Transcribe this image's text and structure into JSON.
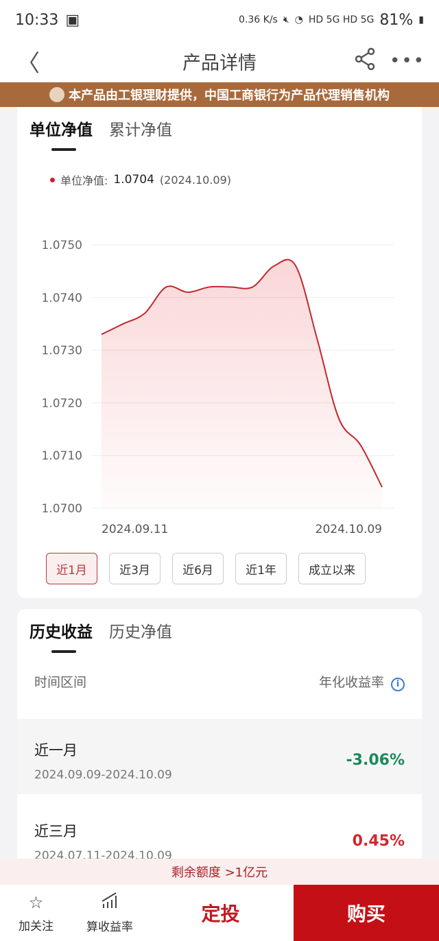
{
  "status": {
    "time": "10:33",
    "speed": "0.36 K/s",
    "net": "HD 5G HD 5G",
    "battery": "81%"
  },
  "nav": {
    "title": "产品详情"
  },
  "banner": {
    "text": "本产品由工银理财提供，中国工商银行为产品代理销售机构"
  },
  "chart_card": {
    "tabs": [
      "单位净值",
      "累计净值"
    ],
    "legend_label": "单位净值:",
    "legend_value": "1.0704",
    "legend_date": "(2024.10.09)",
    "periods": [
      "近1月",
      "近3月",
      "近6月",
      "近1年",
      "成立以来"
    ],
    "active_period": 0
  },
  "chart_data": {
    "type": "area",
    "series": [
      {
        "name": "单位净值",
        "x": [
          "2024.09.11",
          "2024.09.12",
          "2024.09.13",
          "2024.09.18",
          "2024.09.19",
          "2024.09.20",
          "2024.09.23",
          "2024.09.24",
          "2024.09.25",
          "2024.09.26",
          "2024.09.27",
          "2024.09.30",
          "2024.10.08",
          "2024.10.09"
        ],
        "values": [
          1.0733,
          1.0735,
          1.0737,
          1.0742,
          1.0741,
          1.0742,
          1.0742,
          1.0742,
          1.0746,
          1.0746,
          1.0732,
          1.0717,
          1.0712,
          1.0704
        ]
      }
    ],
    "y_ticks": [
      "1.0750",
      "1.0740",
      "1.0730",
      "1.0720",
      "1.0710",
      "1.0700"
    ],
    "x_ticks": [
      "2024.09.11",
      "2024.10.09"
    ],
    "ylim": [
      1.07,
      1.075
    ],
    "grid": true,
    "color": "#c0282d"
  },
  "history": {
    "tabs": [
      "历史收益",
      "历史净值"
    ],
    "col_period": "时间区间",
    "col_rate": "年化收益率",
    "rows": [
      {
        "name": "近一月",
        "range": "2024.09.09-2024.10.09",
        "rate": "-3.06%",
        "color": "#1a8a5a"
      },
      {
        "name": "近三月",
        "range": "2024.07.11-2024.10.09",
        "rate": "0.45%",
        "color": "#d0282e"
      }
    ]
  },
  "footer": {
    "quota": "剩余额度 >1亿元",
    "follow": "加关注",
    "calc": "算收益率",
    "dingtou": "定投",
    "buy": "购买"
  }
}
